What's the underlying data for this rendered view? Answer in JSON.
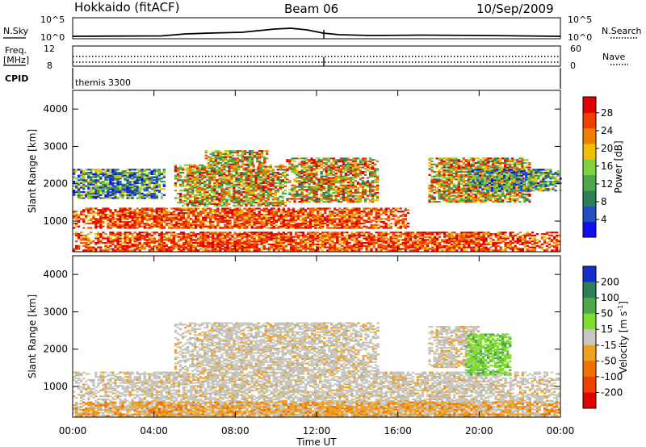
{
  "header": {
    "station": "Hokkaido (fitACF)",
    "beam": "Beam 06",
    "date": "10/Sep/2009"
  },
  "top_panels": {
    "nsky_label": "N.Sky",
    "nsky_ticks": [
      "10^5",
      "10^0"
    ],
    "nsearch_label": "N.Search",
    "nsearch_ticks": [
      "10^5",
      "10^0"
    ],
    "freq_label_1": "Freq.",
    "freq_label_2": "[MHz]",
    "freq_ticks": [
      "12",
      "8"
    ],
    "nave_label": "Nave",
    "nave_ticks": [
      "60",
      "0"
    ],
    "cpid_label": "CPID",
    "cpid_text": "themis 3300"
  },
  "chart_data": [
    {
      "type": "heatmap",
      "name": "power",
      "ylabel": "Slant Range [km]",
      "xlabel": "",
      "xlim": [
        0,
        24
      ],
      "ylim": [
        180,
        4500
      ],
      "x_ticks": [
        0,
        4,
        8,
        12,
        16,
        20,
        24
      ],
      "y_ticks": [
        "1000",
        "2000",
        "3000",
        "4000"
      ],
      "colorbar": {
        "label": "Power [dB]",
        "ticks": [
          "4",
          "8",
          "12",
          "16",
          "20",
          "24",
          "28"
        ],
        "range": [
          0,
          30
        ],
        "colors": [
          "#1010ee",
          "#2050c0",
          "#2e7e5a",
          "#4ea84a",
          "#80d040",
          "#f0c000",
          "#f08000",
          "#f04000",
          "#e00000"
        ]
      },
      "regions": [
        {
          "t": [
            0.0,
            24.0
          ],
          "r": [
            200,
            700
          ],
          "level": "strong"
        },
        {
          "t": [
            0.0,
            16.5
          ],
          "r": [
            800,
            1350
          ],
          "level": "strong"
        },
        {
          "t": [
            5.0,
            10.5
          ],
          "r": [
            1400,
            2500
          ],
          "level": "medium"
        },
        {
          "t": [
            6.5,
            9.5
          ],
          "r": [
            2500,
            2900
          ],
          "level": "medium"
        },
        {
          "t": [
            10.5,
            15.0
          ],
          "r": [
            1500,
            2700
          ],
          "level": "medium"
        },
        {
          "t": [
            17.5,
            22.5
          ],
          "r": [
            1500,
            2700
          ],
          "level": "medium"
        },
        {
          "t": [
            0.0,
            4.5
          ],
          "r": [
            1600,
            2400
          ],
          "level": "weak"
        },
        {
          "t": [
            19.5,
            24.0
          ],
          "r": [
            1800,
            2400
          ],
          "level": "weak"
        }
      ]
    },
    {
      "type": "heatmap",
      "name": "velocity",
      "ylabel": "Slant Range [km]",
      "xlabel": "Time UT",
      "xlim": [
        0,
        24
      ],
      "ylim": [
        180,
        4500
      ],
      "x_ticks": [
        0,
        4,
        8,
        12,
        16,
        20,
        24
      ],
      "x_tick_labels": [
        "00:00",
        "04:00",
        "08:00",
        "12:00",
        "16:00",
        "20:00",
        "00:00"
      ],
      "y_ticks": [
        "1000",
        "2000",
        "3000",
        "4000"
      ],
      "colorbar": {
        "label": "Velocity [m s",
        "label_sup": "-1",
        "label_end": "]",
        "ticks": [
          "200",
          "100",
          "50",
          "15",
          "-15",
          "-50",
          "-100",
          "-200"
        ],
        "colors": [
          "#1530c8",
          "#2e7e5a",
          "#4ea84a",
          "#80dd30",
          "#c8c8c0",
          "#f0a020",
          "#f07000",
          "#f04000",
          "#e00000"
        ]
      },
      "regions": [
        {
          "t": [
            0.0,
            24.0
          ],
          "r": [
            200,
            1400
          ],
          "level": "ground"
        },
        {
          "t": [
            5.0,
            15.0
          ],
          "r": [
            1400,
            2700
          ],
          "level": "ground"
        },
        {
          "t": [
            17.5,
            20.0
          ],
          "r": [
            1500,
            2600
          ],
          "level": "ground"
        },
        {
          "t": [
            19.3,
            21.5
          ],
          "r": [
            1300,
            2400
          ],
          "level": "positive"
        },
        {
          "t": [
            0.0,
            24.0
          ],
          "r": [
            200,
            600
          ],
          "level": "negative"
        }
      ]
    }
  ]
}
